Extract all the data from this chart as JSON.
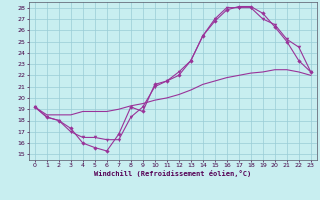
{
  "xlabel": "Windchill (Refroidissement éolien,°C)",
  "bg_color": "#c8eef0",
  "grid_color": "#99ccd6",
  "line_color": "#993399",
  "xlim": [
    -0.5,
    23.5
  ],
  "ylim": [
    14.5,
    28.5
  ],
  "xticks": [
    0,
    1,
    2,
    3,
    4,
    5,
    6,
    7,
    8,
    9,
    10,
    11,
    12,
    13,
    14,
    15,
    16,
    17,
    18,
    19,
    20,
    21,
    22,
    23
  ],
  "yticks": [
    15,
    16,
    17,
    18,
    19,
    20,
    21,
    22,
    23,
    24,
    25,
    26,
    27,
    28
  ],
  "line1_x": [
    0,
    1,
    2,
    3,
    4,
    5,
    6,
    7,
    8,
    9,
    10,
    11,
    12,
    13,
    14,
    15,
    16,
    17,
    18,
    19,
    20,
    21,
    22,
    23
  ],
  "line1_y": [
    19.2,
    18.3,
    18.0,
    17.3,
    16.0,
    15.6,
    15.3,
    16.8,
    19.2,
    18.8,
    21.2,
    21.5,
    22.0,
    23.3,
    25.5,
    26.8,
    27.8,
    28.1,
    28.1,
    27.5,
    26.3,
    25.0,
    23.3,
    22.3
  ],
  "line2_x": [
    0,
    1,
    2,
    3,
    4,
    5,
    6,
    7,
    8,
    9,
    10,
    11,
    12,
    13,
    14,
    15,
    16,
    17,
    18,
    19,
    20,
    21,
    22,
    23
  ],
  "line2_y": [
    19.2,
    18.3,
    18.0,
    17.0,
    16.5,
    16.5,
    16.3,
    16.3,
    18.3,
    19.2,
    21.0,
    21.5,
    22.3,
    23.3,
    25.5,
    27.0,
    28.0,
    28.0,
    28.0,
    27.0,
    26.5,
    25.2,
    24.5,
    22.3
  ],
  "line3_x": [
    0,
    1,
    2,
    3,
    4,
    5,
    6,
    7,
    8,
    9,
    10,
    11,
    12,
    13,
    14,
    15,
    16,
    17,
    18,
    19,
    20,
    21,
    22,
    23
  ],
  "line3_y": [
    19.2,
    18.5,
    18.5,
    18.5,
    18.8,
    18.8,
    18.8,
    19.0,
    19.3,
    19.5,
    19.8,
    20.0,
    20.3,
    20.7,
    21.2,
    21.5,
    21.8,
    22.0,
    22.2,
    22.3,
    22.5,
    22.5,
    22.3,
    22.0
  ]
}
